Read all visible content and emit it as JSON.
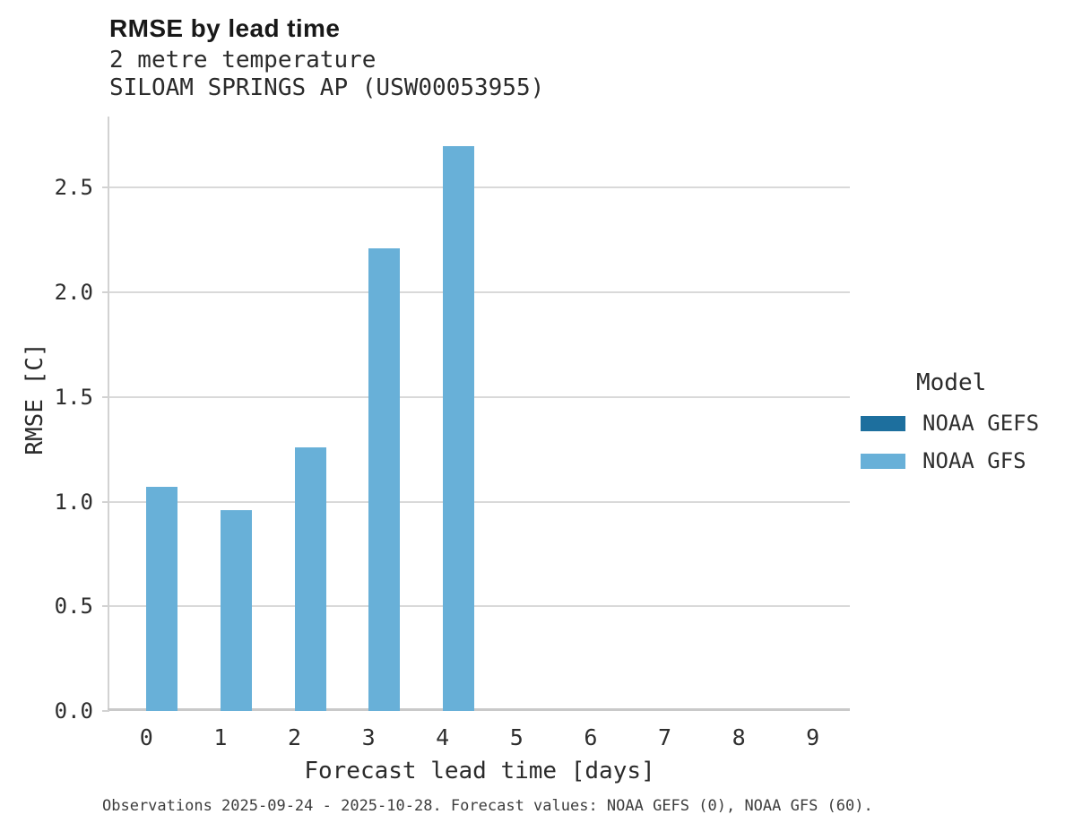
{
  "title": "RMSE by lead time",
  "subtitle": {
    "line1": "2 metre temperature",
    "line2": "SILOAM SPRINGS AP (USW00053955)"
  },
  "caption": "Observations 2025-09-24 - 2025-10-28. Forecast values: NOAA GEFS (0), NOAA GFS (60).",
  "legend": {
    "title": "Model",
    "entries": [
      {
        "label": "NOAA GEFS",
        "color": "#1d6f9e"
      },
      {
        "label": "NOAA GFS",
        "color": "#68b0d8"
      }
    ]
  },
  "colors": {
    "bar_gefs": "#1d6f9e",
    "bar_gfs": "#68b0d8",
    "gridline": "#d9d9d9",
    "axis_line": "#cccccc",
    "text": "#2e2e2e"
  },
  "chart_data": {
    "type": "bar",
    "title": "RMSE by lead time",
    "subtitle": [
      "2 metre temperature",
      "SILOAM SPRINGS AP (USW00053955)"
    ],
    "xlabel": "Forecast lead time [days]",
    "ylabel": "RMSE [C]",
    "categories": [
      "0",
      "1",
      "2",
      "3",
      "4",
      "5",
      "6",
      "7",
      "8",
      "9"
    ],
    "series": [
      {
        "name": "NOAA GEFS",
        "color": "#1d6f9e",
        "values": [
          null,
          null,
          null,
          null,
          null,
          null,
          null,
          null,
          null,
          null
        ]
      },
      {
        "name": "NOAA GFS",
        "color": "#68b0d8",
        "values": [
          1.07,
          0.96,
          1.26,
          2.21,
          2.7,
          null,
          null,
          null,
          null,
          null
        ]
      }
    ],
    "yticks": [
      0.0,
      0.5,
      1.0,
      1.5,
      2.0,
      2.5
    ],
    "ylim": [
      0,
      2.84
    ],
    "grid": true,
    "legend_title": "Model",
    "legend_position": "right"
  }
}
